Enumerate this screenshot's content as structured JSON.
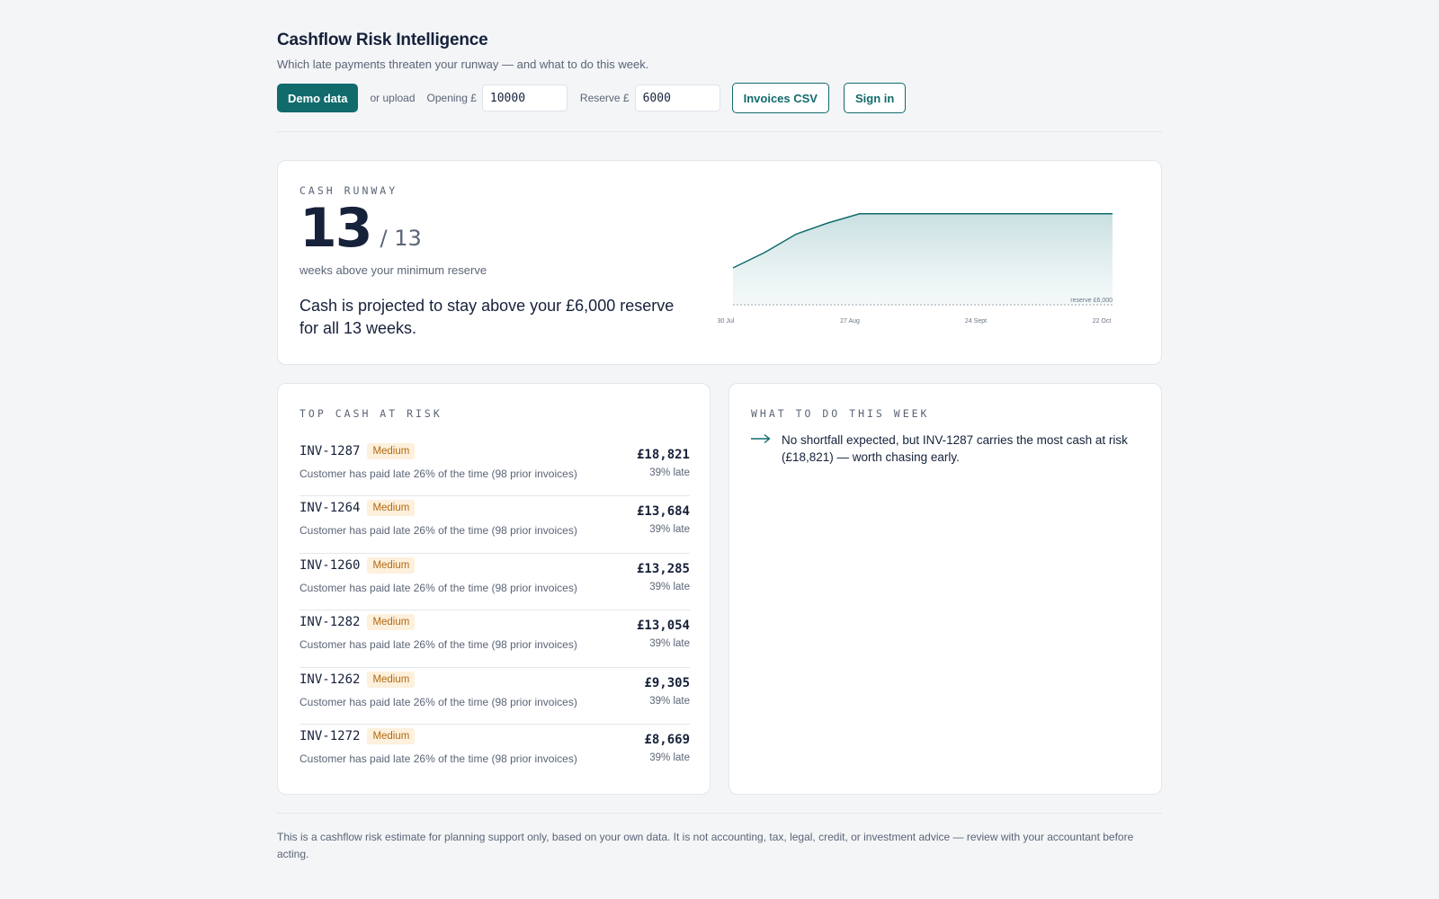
{
  "app": {
    "title": "Cashflow Risk Intelligence",
    "subtitle": "Which late payments threaten your runway — and what to do this week."
  },
  "toolbar": {
    "demo_button": "Demo data",
    "or_upload": "or upload",
    "opening_label": "Opening £",
    "opening_value": "10000",
    "reserve_label": "Reserve £",
    "reserve_value": "6000",
    "csv_button": "Invoices CSV",
    "signin_button": "Sign in"
  },
  "runway": {
    "eyebrow": "CASH RUNWAY",
    "weeks": "13",
    "of_total": "/ 13",
    "caption": "weeks above your minimum reserve",
    "statement": "Cash is projected to stay above your £6,000 reserve for all 13 weeks."
  },
  "chart_data": {
    "type": "area",
    "x_tick_labels": [
      "30 Jul",
      "27 Aug",
      "24 Sept",
      "22 Oct"
    ],
    "week_index": [
      0,
      1,
      2,
      3,
      4,
      5,
      6,
      7,
      8,
      9,
      10,
      11,
      12
    ],
    "values": [
      12000,
      14500,
      17500,
      19300,
      20800,
      20800,
      20800,
      20800,
      20800,
      20800,
      20800,
      20800,
      20800
    ],
    "reserve": 6000,
    "reserve_label": "reserve £6,000",
    "ylim": [
      6000,
      21500
    ],
    "colors": {
      "line": "#116b6c",
      "fill": "#cfe3e3"
    }
  },
  "risk": {
    "eyebrow": "TOP CASH AT RISK",
    "items": [
      {
        "id": "INV-1287",
        "badge": "Medium",
        "reason": "Customer has paid late 26% of the time (98 prior invoices)",
        "amount": "£18,821",
        "late": "39% late"
      },
      {
        "id": "INV-1264",
        "badge": "Medium",
        "reason": "Customer has paid late 26% of the time (98 prior invoices)",
        "amount": "£13,684",
        "late": "39% late"
      },
      {
        "id": "INV-1260",
        "badge": "Medium",
        "reason": "Customer has paid late 26% of the time (98 prior invoices)",
        "amount": "£13,285",
        "late": "39% late"
      },
      {
        "id": "INV-1282",
        "badge": "Medium",
        "reason": "Customer has paid late 26% of the time (98 prior invoices)",
        "amount": "£13,054",
        "late": "39% late"
      },
      {
        "id": "INV-1262",
        "badge": "Medium",
        "reason": "Customer has paid late 26% of the time (98 prior invoices)",
        "amount": "£9,305",
        "late": "39% late"
      },
      {
        "id": "INV-1272",
        "badge": "Medium",
        "reason": "Customer has paid late 26% of the time (98 prior invoices)",
        "amount": "£8,669",
        "late": "39% late"
      }
    ]
  },
  "todo": {
    "eyebrow": "WHAT TO DO THIS WEEK",
    "icon": "arrow-right-icon",
    "action": "No shortfall expected, but INV-1287 carries the most cash at risk (£18,821) — worth chasing early."
  },
  "footer": {
    "disclaimer": "This is a cashflow risk estimate for planning support only, based on your own data. It is not accounting, tax, legal, credit, or investment advice — review with your accountant before acting."
  }
}
